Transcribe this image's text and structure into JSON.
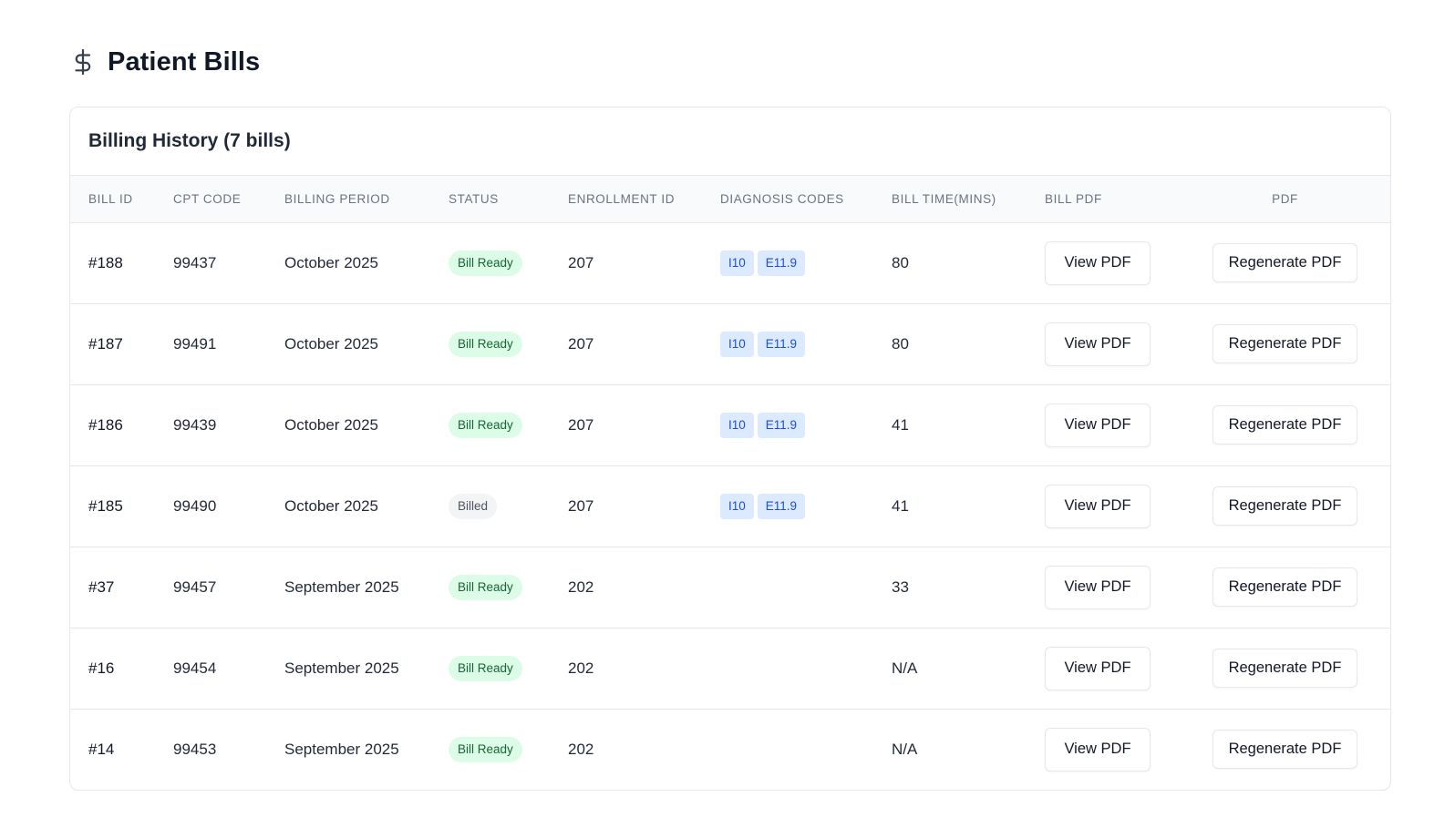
{
  "page": {
    "title": "Patient Bills",
    "icon": "dollar-icon"
  },
  "card": {
    "title": "Billing History (7 bills)"
  },
  "table": {
    "headers": {
      "bill_id": "BILL ID",
      "cpt_code": "CPT CODE",
      "billing_period": "BILLING PERIOD",
      "status": "STATUS",
      "enrollment_id": "ENROLLMENT ID",
      "diagnosis_codes": "DIAGNOSIS CODES",
      "bill_time": "BILL TIME(MINS)",
      "bill_pdf": "BILL PDF",
      "pdf": "PDF"
    },
    "rows": [
      {
        "bill_id": "#188",
        "cpt_code": "99437",
        "billing_period": "October 2025",
        "status": "Bill Ready",
        "status_kind": "ready",
        "enrollment_id": "207",
        "diagnosis_codes": [
          "I10",
          "E11.9"
        ],
        "bill_time": "80",
        "view_label": "View PDF",
        "regen_label": "Regenerate PDF"
      },
      {
        "bill_id": "#187",
        "cpt_code": "99491",
        "billing_period": "October 2025",
        "status": "Bill Ready",
        "status_kind": "ready",
        "enrollment_id": "207",
        "diagnosis_codes": [
          "I10",
          "E11.9"
        ],
        "bill_time": "80",
        "view_label": "View PDF",
        "regen_label": "Regenerate PDF"
      },
      {
        "bill_id": "#186",
        "cpt_code": "99439",
        "billing_period": "October 2025",
        "status": "Bill Ready",
        "status_kind": "ready",
        "enrollment_id": "207",
        "diagnosis_codes": [
          "I10",
          "E11.9"
        ],
        "bill_time": "41",
        "view_label": "View PDF",
        "regen_label": "Regenerate PDF"
      },
      {
        "bill_id": "#185",
        "cpt_code": "99490",
        "billing_period": "October 2025",
        "status": "Billed",
        "status_kind": "billed",
        "enrollment_id": "207",
        "diagnosis_codes": [
          "I10",
          "E11.9"
        ],
        "bill_time": "41",
        "view_label": "View PDF",
        "regen_label": "Regenerate PDF"
      },
      {
        "bill_id": "#37",
        "cpt_code": "99457",
        "billing_period": "September 2025",
        "status": "Bill Ready",
        "status_kind": "ready",
        "enrollment_id": "202",
        "diagnosis_codes": [],
        "bill_time": "33",
        "view_label": "View PDF",
        "regen_label": "Regenerate PDF"
      },
      {
        "bill_id": "#16",
        "cpt_code": "99454",
        "billing_period": "September 2025",
        "status": "Bill Ready",
        "status_kind": "ready",
        "enrollment_id": "202",
        "diagnosis_codes": [],
        "bill_time": "N/A",
        "view_label": "View PDF",
        "regen_label": "Regenerate PDF"
      },
      {
        "bill_id": "#14",
        "cpt_code": "99453",
        "billing_period": "September 2025",
        "status": "Bill Ready",
        "status_kind": "ready",
        "enrollment_id": "202",
        "diagnosis_codes": [],
        "bill_time": "N/A",
        "view_label": "View PDF",
        "regen_label": "Regenerate PDF"
      }
    ]
  },
  "colors": {
    "status_ready_bg": "#dcfce7",
    "status_ready_text": "#166534",
    "status_billed_bg": "#f3f4f6",
    "status_billed_text": "#4b5563",
    "code_chip_bg": "#dbeafe",
    "code_chip_text": "#1d4ed8"
  }
}
